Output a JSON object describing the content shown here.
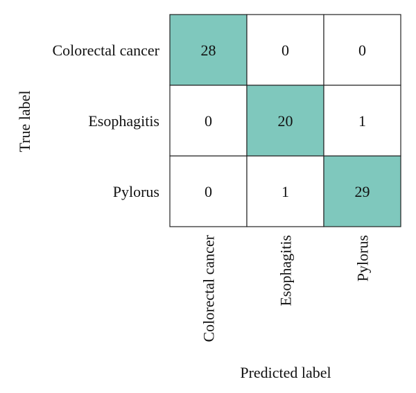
{
  "chart_data": {
    "type": "heatmap",
    "title": "",
    "xlabel": "Predicted label",
    "ylabel": "True label",
    "x_categories": [
      "Colorectal cancer",
      "Esophagitis",
      "Pylorus"
    ],
    "y_categories": [
      "Colorectal cancer",
      "Esophagitis",
      "Pylorus"
    ],
    "matrix": [
      [
        28,
        0,
        0
      ],
      [
        0,
        20,
        1
      ],
      [
        0,
        1,
        29
      ]
    ],
    "colors": {
      "high": "#7fc8bd",
      "low": "#ffffff",
      "grid": "#222222"
    }
  }
}
